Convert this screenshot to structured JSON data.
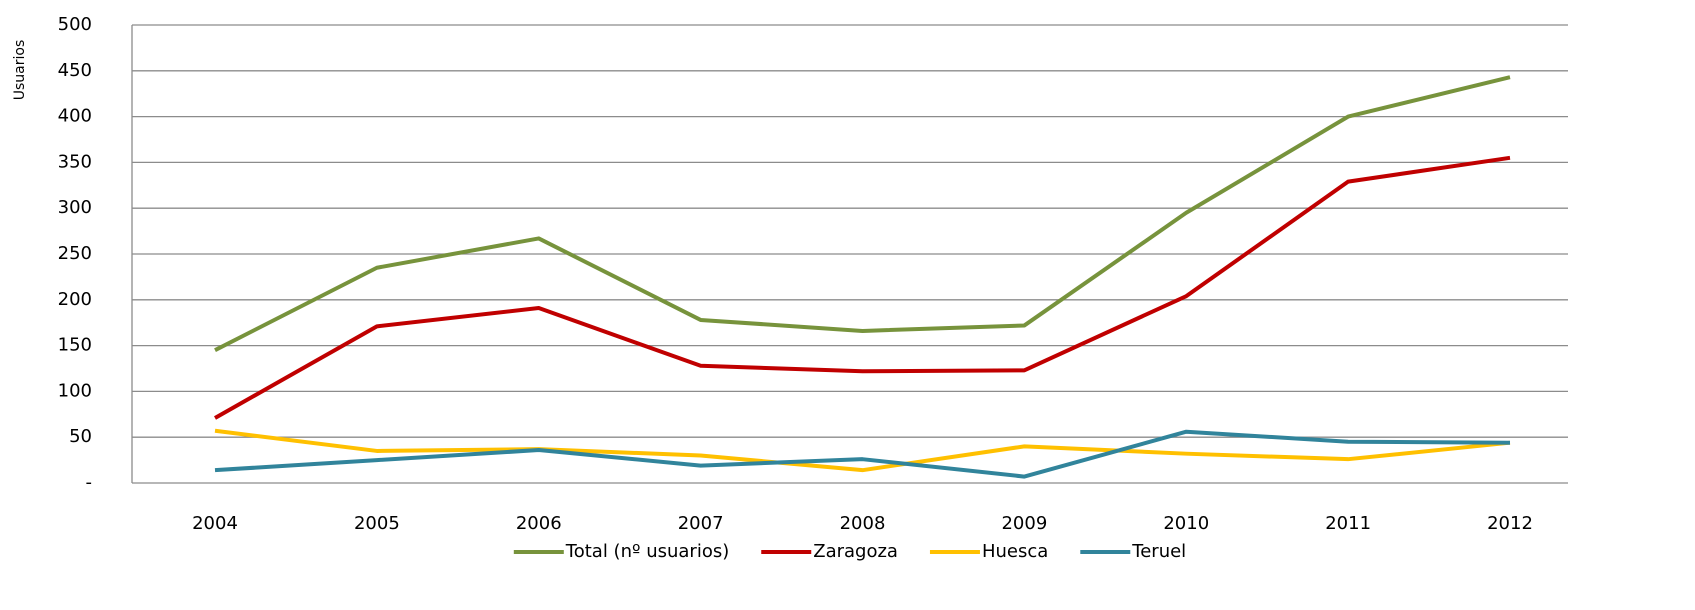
{
  "chart_data": {
    "type": "line",
    "y_label": "Usuarios",
    "categories": [
      "2004",
      "2005",
      "2006",
      "2007",
      "2008",
      "2009",
      "2010",
      "2011",
      "2012"
    ],
    "series": [
      {
        "name": "Total (nº usuarios)",
        "color": "#77933c",
        "values": [
          145,
          235,
          267,
          178,
          166,
          172,
          295,
          400,
          443
        ]
      },
      {
        "name": "Zaragoza",
        "color": "#c00000",
        "values": [
          71,
          171,
          191,
          128,
          122,
          123,
          204,
          329,
          355
        ]
      },
      {
        "name": "Huesca",
        "color": "#ffc000",
        "values": [
          57,
          35,
          37,
          30,
          14,
          40,
          32,
          26,
          44
        ]
      },
      {
        "name": "Teruel",
        "color": "#31849b",
        "values": [
          14,
          25,
          36,
          19,
          26,
          7,
          56,
          45,
          44
        ]
      }
    ],
    "ylim": [
      0,
      500
    ],
    "yticks": [
      {
        "value": 0,
        "label": "-"
      },
      50,
      100,
      150,
      200,
      250,
      300,
      350,
      400,
      450,
      500
    ],
    "grid": true,
    "legend": "bottom"
  }
}
